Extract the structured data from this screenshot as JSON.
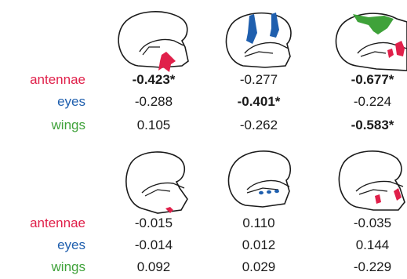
{
  "colors": {
    "antennae": "#e0204a",
    "eyes": "#1f5fae",
    "wings": "#3fa23a",
    "outline": "#1a1a1a",
    "text": "#1a1a1a"
  },
  "labels": {
    "antennae": "antennae",
    "eyes": "eyes",
    "wings": "wings"
  },
  "top_table": {
    "icons": [
      "head-antennae-icon",
      "head-eyes-icon",
      "head-wings-icon"
    ],
    "rows": [
      {
        "label": "antennae",
        "values": [
          "-0.423*",
          "-0.277",
          "-0.677*"
        ],
        "bold": [
          true,
          false,
          true
        ]
      },
      {
        "label": "eyes",
        "values": [
          "-0.288",
          "-0.401*",
          "-0.224"
        ],
        "bold": [
          false,
          true,
          false
        ]
      },
      {
        "label": "wings",
        "values": [
          "0.105",
          "-0.262",
          "-0.583*"
        ],
        "bold": [
          false,
          false,
          true
        ]
      }
    ]
  },
  "bottom_table": {
    "icons": [
      "head-antennae-small-icon",
      "head-eyes-small-icon",
      "head-antennae-pair-icon"
    ],
    "rows": [
      {
        "label": "antennae",
        "values": [
          "-0.015",
          "0.110",
          "-0.035"
        ],
        "bold": [
          false,
          false,
          false
        ]
      },
      {
        "label": "eyes",
        "values": [
          "-0.014",
          "0.012",
          "0.144"
        ],
        "bold": [
          false,
          false,
          false
        ]
      },
      {
        "label": "wings",
        "values": [
          "0.092",
          "0.029",
          "-0.229"
        ],
        "bold": [
          false,
          false,
          false
        ]
      }
    ]
  }
}
